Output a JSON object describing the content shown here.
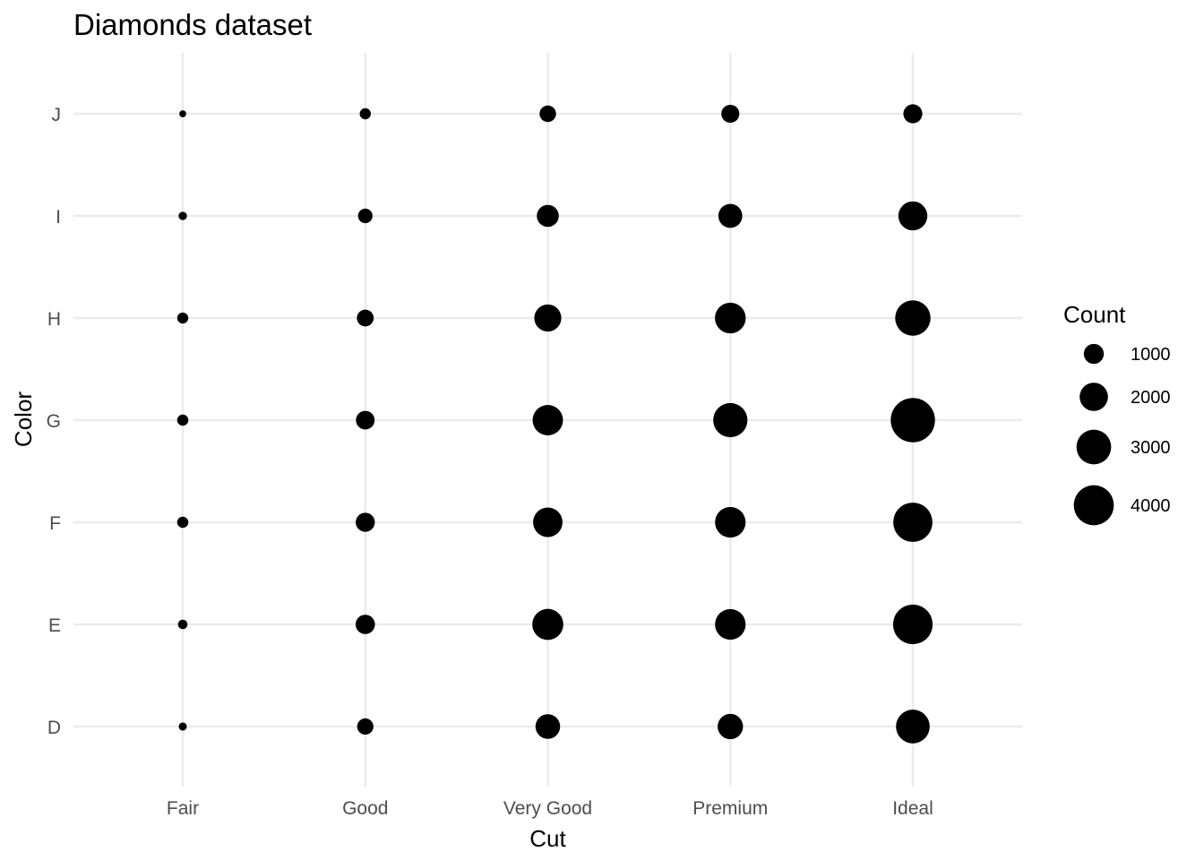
{
  "chart_data": {
    "type": "scatter",
    "title": "Diamonds dataset",
    "xlabel": "Cut",
    "ylabel": "Color",
    "x_categories": [
      "Fair",
      "Good",
      "Very Good",
      "Premium",
      "Ideal"
    ],
    "y_categories": [
      "D",
      "E",
      "F",
      "G",
      "H",
      "I",
      "J"
    ],
    "size_variable": "Count",
    "points": [
      {
        "cut": "Fair",
        "color": "D",
        "count": 163
      },
      {
        "cut": "Fair",
        "color": "E",
        "count": 224
      },
      {
        "cut": "Fair",
        "color": "F",
        "count": 312
      },
      {
        "cut": "Fair",
        "color": "G",
        "count": 314
      },
      {
        "cut": "Fair",
        "color": "H",
        "count": 303
      },
      {
        "cut": "Fair",
        "color": "I",
        "count": 175
      },
      {
        "cut": "Fair",
        "color": "J",
        "count": 119
      },
      {
        "cut": "Good",
        "color": "D",
        "count": 662
      },
      {
        "cut": "Good",
        "color": "E",
        "count": 933
      },
      {
        "cut": "Good",
        "color": "F",
        "count": 909
      },
      {
        "cut": "Good",
        "color": "G",
        "count": 871
      },
      {
        "cut": "Good",
        "color": "H",
        "count": 702
      },
      {
        "cut": "Good",
        "color": "I",
        "count": 522
      },
      {
        "cut": "Good",
        "color": "J",
        "count": 307
      },
      {
        "cut": "Very Good",
        "color": "D",
        "count": 1513
      },
      {
        "cut": "Very Good",
        "color": "E",
        "count": 2400
      },
      {
        "cut": "Very Good",
        "color": "F",
        "count": 2164
      },
      {
        "cut": "Very Good",
        "color": "G",
        "count": 2299
      },
      {
        "cut": "Very Good",
        "color": "H",
        "count": 1824
      },
      {
        "cut": "Very Good",
        "color": "I",
        "count": 1204
      },
      {
        "cut": "Very Good",
        "color": "J",
        "count": 678
      },
      {
        "cut": "Premium",
        "color": "D",
        "count": 1603
      },
      {
        "cut": "Premium",
        "color": "E",
        "count": 2337
      },
      {
        "cut": "Premium",
        "color": "F",
        "count": 2331
      },
      {
        "cut": "Premium",
        "color": "G",
        "count": 2924
      },
      {
        "cut": "Premium",
        "color": "H",
        "count": 2360
      },
      {
        "cut": "Premium",
        "color": "I",
        "count": 1428
      },
      {
        "cut": "Premium",
        "color": "J",
        "count": 808
      },
      {
        "cut": "Ideal",
        "color": "D",
        "count": 2834
      },
      {
        "cut": "Ideal",
        "color": "E",
        "count": 3903
      },
      {
        "cut": "Ideal",
        "color": "F",
        "count": 3826
      },
      {
        "cut": "Ideal",
        "color": "G",
        "count": 4884
      },
      {
        "cut": "Ideal",
        "color": "H",
        "count": 3115
      },
      {
        "cut": "Ideal",
        "color": "I",
        "count": 2093
      },
      {
        "cut": "Ideal",
        "color": "J",
        "count": 896
      }
    ],
    "legend": {
      "title": "Count",
      "position": "right",
      "breaks": [
        1000,
        2000,
        3000,
        4000
      ],
      "labels": [
        "1000",
        "2000",
        "3000",
        "4000"
      ]
    },
    "grid": true,
    "theme": "minimal",
    "colors": {
      "point": "#000000",
      "grid": "#ebebeb",
      "tick_text": "#4d4d4d"
    }
  }
}
